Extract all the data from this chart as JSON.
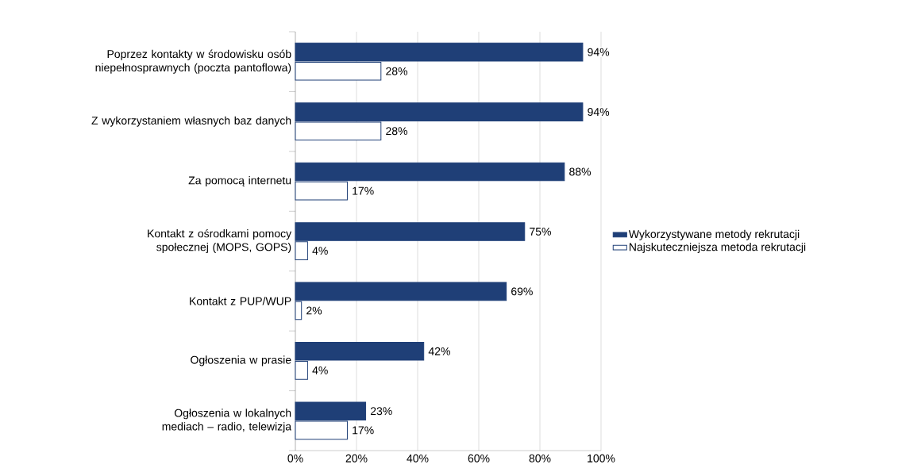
{
  "chart_data": {
    "type": "bar",
    "orientation": "horizontal",
    "categories": [
      "Poprzez kontakty w środowisku osób niepełnosprawnych (poczta pantoflowa)",
      "Z wykorzystaniem własnych baz danych",
      "Za pomocą internetu",
      "Kontakt z ośrodkami pomocy społecznej (MOPS, GOPS)",
      "Kontakt z PUP/WUP",
      "Ogłoszenia w prasie",
      "Ogłoszenia w lokalnych mediach – radio, telewizja"
    ],
    "series": [
      {
        "name": "Wykorzystywane metody rekrutacji",
        "color": "#1f3f77",
        "values": [
          94,
          94,
          88,
          75,
          69,
          42,
          23
        ],
        "value_labels": [
          "94%",
          "94%",
          "88%",
          "75%",
          "69%",
          "42%",
          "23%"
        ]
      },
      {
        "name": "Najskuteczniejsza metoda rekrutacji",
        "color": "#ffffff",
        "values": [
          28,
          28,
          17,
          4,
          2,
          4,
          17
        ],
        "value_labels": [
          "28%",
          "28%",
          "17%",
          "4%",
          "2%",
          "4%",
          "17%"
        ]
      }
    ],
    "xlim": [
      0,
      100
    ],
    "xticks": [
      {
        "value": 0,
        "label": "0%"
      },
      {
        "value": 20,
        "label": "20%"
      },
      {
        "value": 40,
        "label": "40%"
      },
      {
        "value": 60,
        "label": "60%"
      },
      {
        "value": 80,
        "label": "80%"
      },
      {
        "value": 100,
        "label": "100%"
      }
    ],
    "grid": "x",
    "legend": "right"
  }
}
